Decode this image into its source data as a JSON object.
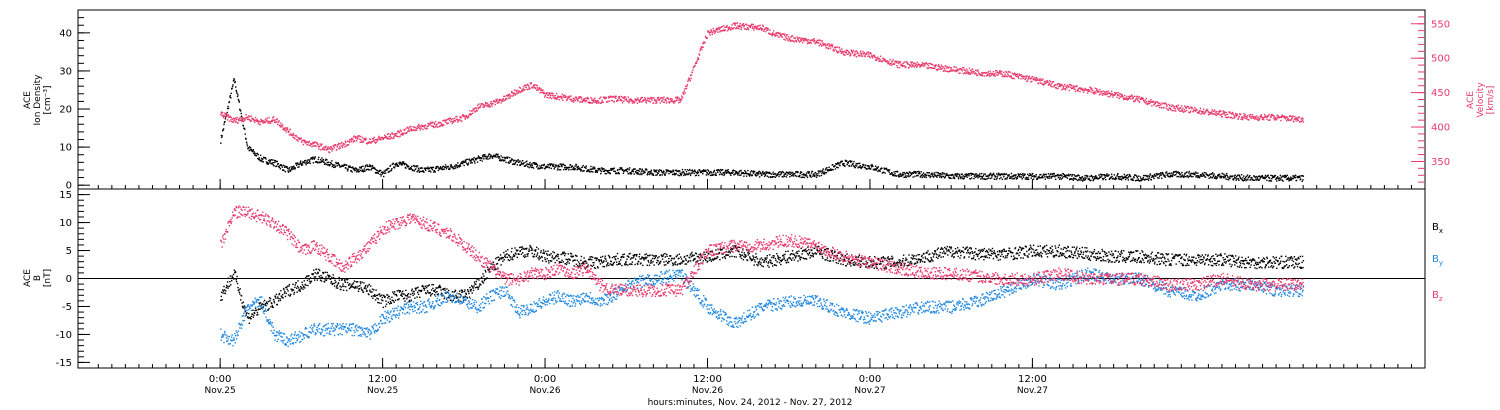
{
  "chart_data": [
    {
      "type": "scatter",
      "panel": "plasma",
      "ylabel_left": [
        "ACE",
        "Ion Density",
        "[cm⁻³]"
      ],
      "ylabel_right": [
        "ACE",
        "Velocity",
        "[km/s]"
      ],
      "ylim_left": [
        -1,
        46
      ],
      "yticks_left": [
        0,
        10,
        20,
        30,
        40
      ],
      "ylim_right": [
        310,
        570
      ],
      "yticks_right": [
        350,
        400,
        450,
        500,
        550
      ],
      "series": [
        {
          "name": "",
          "axis": "left",
          "color": "#000000",
          "x": [
            0,
            1,
            2,
            3,
            4,
            5,
            6,
            7,
            8,
            9,
            10,
            11,
            12,
            13,
            14,
            15,
            16,
            17,
            18,
            19,
            20,
            21,
            22,
            23,
            24,
            25,
            26,
            27,
            28,
            29,
            30,
            32,
            34,
            36,
            38,
            40,
            42,
            44,
            46,
            48,
            50,
            52,
            54,
            56,
            58,
            60,
            62,
            64,
            66,
            68,
            70,
            72,
            74,
            76,
            78,
            80
          ],
          "y": [
            12,
            28,
            10,
            7,
            6,
            4,
            6,
            7,
            6,
            5,
            4,
            5,
            3,
            6,
            5,
            4,
            4.5,
            5,
            6,
            7,
            8,
            7,
            6,
            5.5,
            5,
            5,
            5,
            4.5,
            4,
            4,
            4,
            3.5,
            3.5,
            3.5,
            3.5,
            3,
            3,
            3,
            6,
            5,
            3,
            3,
            2.5,
            2.5,
            2.5,
            2.5,
            2.5,
            2,
            2.5,
            2,
            3,
            3,
            2.5,
            2,
            2,
            2
          ]
        },
        {
          "name": "",
          "axis": "right",
          "color": "#e83a6c",
          "x": [
            0,
            1,
            2,
            3,
            4,
            5,
            6,
            7,
            8,
            9,
            10,
            11,
            12,
            13,
            14,
            15,
            16,
            17,
            18,
            19,
            20,
            21,
            22,
            23,
            24,
            25,
            26,
            27,
            28,
            29,
            30,
            32,
            34,
            36,
            38,
            40,
            41,
            42,
            44,
            46,
            48,
            50,
            52,
            54,
            56,
            58,
            60,
            62,
            64,
            66,
            68,
            70,
            72,
            74,
            76,
            78,
            80
          ],
          "y": [
            420,
            410,
            415,
            408,
            412,
            395,
            380,
            375,
            368,
            375,
            385,
            380,
            385,
            390,
            398,
            402,
            405,
            410,
            415,
            430,
            435,
            442,
            455,
            462,
            448,
            445,
            442,
            440,
            440,
            442,
            440,
            440,
            440,
            538,
            548,
            545,
            535,
            530,
            525,
            510,
            505,
            492,
            490,
            485,
            480,
            478,
            470,
            460,
            455,
            448,
            440,
            430,
            425,
            420,
            415,
            415,
            412
          ]
        }
      ]
    },
    {
      "type": "scatter",
      "panel": "magnetic-field",
      "ylabel_left": [
        "ACE",
        "B",
        "[nT]"
      ],
      "ylim": [
        -16,
        16
      ],
      "yticks": [
        -15,
        -10,
        -5,
        0,
        5,
        10,
        15
      ],
      "x_ticks": [
        "0:00",
        "12:00",
        "0:00",
        "12:00",
        "0:00",
        "12:00"
      ],
      "x_ticks_secondary": [
        "Nov.25",
        "Nov.25",
        "Nov.26",
        "Nov.26",
        "Nov.27",
        "Nov.27"
      ],
      "xlabel": "hours:minutes, Nov. 24, 2012 - Nov. 27, 2012",
      "xlim_hours": [
        -10.5,
        89
      ],
      "x_tick_hours": [
        0,
        12,
        24,
        36,
        48,
        60
      ],
      "series": [
        {
          "name": "B",
          "subscript": "x",
          "color": "#000000",
          "x": [
            0,
            1,
            2,
            3,
            4,
            5,
            6,
            7,
            8,
            9,
            10,
            11,
            12,
            13,
            14,
            15,
            16,
            17,
            18,
            19,
            20,
            21,
            22,
            23,
            24,
            25,
            26,
            27,
            28,
            29,
            30,
            32,
            34,
            36,
            38,
            40,
            42,
            44,
            46,
            48,
            50,
            52,
            54,
            56,
            58,
            60,
            62,
            64,
            66,
            68,
            70,
            72,
            74,
            76,
            78,
            80
          ],
          "y": [
            -3,
            1,
            -7,
            -5,
            -4,
            -2,
            -1,
            1,
            0,
            -1,
            -1,
            -2,
            -4,
            -3,
            -3,
            -2,
            -2,
            -3,
            -3,
            -1,
            2,
            4,
            5,
            5,
            4,
            4,
            3.5,
            3,
            3,
            3.5,
            3.5,
            3.5,
            3.5,
            4,
            5,
            3,
            4,
            5,
            3.5,
            3,
            3,
            4,
            5,
            4.5,
            4.5,
            5,
            5,
            4.5,
            4,
            4,
            3.5,
            3.5,
            3.5,
            3,
            3,
            3
          ]
        },
        {
          "name": "B",
          "subscript": "y",
          "color": "#1e88e0",
          "x": [
            0,
            1,
            2,
            3,
            4,
            5,
            6,
            7,
            8,
            9,
            10,
            11,
            12,
            13,
            14,
            15,
            16,
            17,
            18,
            19,
            20,
            21,
            22,
            23,
            24,
            25,
            26,
            27,
            28,
            29,
            30,
            32,
            34,
            36,
            38,
            40,
            42,
            44,
            46,
            48,
            50,
            52,
            54,
            56,
            58,
            60,
            62,
            64,
            66,
            68,
            70,
            72,
            74,
            76,
            78,
            80
          ],
          "y": [
            -10,
            -11,
            -5,
            -4,
            -10,
            -11,
            -10,
            -9,
            -9,
            -9,
            -9,
            -10,
            -7,
            -6,
            -5,
            -5,
            -4,
            -3,
            -4,
            -5,
            -3,
            -2,
            -6,
            -5,
            -4,
            -3,
            -4,
            -3,
            -4,
            -3,
            -1,
            0,
            1,
            -5,
            -8,
            -5,
            -4,
            -4,
            -6,
            -7,
            -6,
            -5,
            -5,
            -4,
            -2,
            0,
            -1,
            1,
            0,
            0,
            -2,
            -3,
            -1,
            -1,
            -2,
            -2
          ]
        },
        {
          "name": "B",
          "subscript": "z",
          "color": "#e83a6c",
          "x": [
            0,
            1,
            2,
            3,
            4,
            5,
            6,
            7,
            8,
            9,
            10,
            11,
            12,
            13,
            14,
            15,
            16,
            17,
            18,
            19,
            20,
            21,
            22,
            23,
            24,
            25,
            26,
            27,
            28,
            29,
            30,
            32,
            34,
            36,
            38,
            40,
            42,
            44,
            46,
            48,
            50,
            52,
            54,
            56,
            58,
            60,
            62,
            64,
            66,
            68,
            70,
            72,
            74,
            76,
            78,
            80
          ],
          "y": [
            6,
            12,
            12,
            11,
            10,
            8,
            5,
            6,
            4,
            2,
            4,
            6,
            9,
            10,
            11,
            10,
            9,
            8,
            6,
            4,
            2,
            0,
            0,
            1,
            1,
            2,
            1,
            2,
            -1,
            -2,
            -2,
            -2,
            -2,
            5,
            6,
            6,
            7,
            6,
            4,
            3,
            2,
            1,
            1,
            0.5,
            0,
            0,
            1,
            0,
            0,
            0,
            -1,
            -1,
            0,
            -1,
            -1,
            -1
          ]
        }
      ]
    }
  ]
}
